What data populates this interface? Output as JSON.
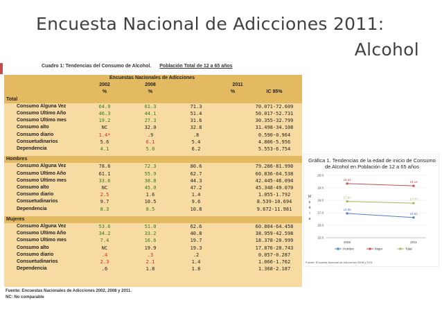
{
  "slide": {
    "title_line1": "Encuesta Nacional de Adicciones 2011:",
    "title_line2": "Alcohol"
  },
  "cuadro": {
    "title": "Cuadro 1: Tendencias del Consumo de Alcohol.",
    "poblacion": "Población Total de 12 a 65 años"
  },
  "table": {
    "group_header": "Encuestas Nacionales de Adicciones",
    "years": [
      "2002",
      "2008",
      "2011"
    ],
    "units": [
      "%",
      "%",
      "%",
      "IC 95%"
    ],
    "sections": [
      {
        "name": "Total",
        "rows": [
          {
            "label": "Consumo Alguna Vez",
            "v2002": "64.9",
            "v2008": "61.3",
            "v2011": "71.3",
            "ic": "70.071-72.609",
            "c2002": "green",
            "c2008": "green"
          },
          {
            "label": "Consumo Último Año",
            "v2002": "46.3",
            "v2008": "44.1",
            "v2011": "51.4",
            "ic": "50.017-52.731",
            "c2002": "green",
            "c2008": "green"
          },
          {
            "label": "Consumo Último mes",
            "v2002": "19.2",
            "v2008": "27.3",
            "v2011": "31.6",
            "ic": "30.355-32.799",
            "c2002": "green",
            "c2008": "green"
          },
          {
            "label": "Consumo alto",
            "v2002": "NC",
            "v2008": "32.0",
            "v2011": "32.8",
            "ic": "31.498-34.108",
            "c2002": "",
            "c2008": ""
          },
          {
            "label": "Consumo diario",
            "v2002": "1.4*",
            "v2008": ".9",
            "v2011": ".8",
            "ic": "0.590-0.964",
            "c2002": "red",
            "c2008": ""
          },
          {
            "label": "Consuetudinarios",
            "v2002": "5.6",
            "v2008": "6.1",
            "v2011": "5.4",
            "ic": "4.806-5.956",
            "c2002": "",
            "c2008": "red"
          },
          {
            "label": "Dependencia",
            "v2002": "4.1",
            "v2008": "5.0",
            "v2011": "6.2",
            "ic": "5.553-6.754",
            "c2002": "green",
            "c2008": "green"
          }
        ]
      },
      {
        "name": "Hombres",
        "rows": [
          {
            "label": "Consumo Alguna Vez",
            "v2002": "78.6",
            "v2008": "72.3",
            "v2011": "80.6",
            "ic": "79.286-81.990",
            "c2002": "",
            "c2008": "green"
          },
          {
            "label": "Consumo Último Año",
            "v2002": "61.1",
            "v2008": "55.9",
            "v2011": "62.7",
            "ic": "60.836-64.538",
            "c2002": "",
            "c2008": "green"
          },
          {
            "label": "Consumo Último mes",
            "v2002": "33.6",
            "v2008": "38.8",
            "v2011": "44.3",
            "ic": "42.445-46.094",
            "c2002": "green",
            "c2008": "green"
          },
          {
            "label": "Consumo alto",
            "v2002": "NC",
            "v2008": "45.0",
            "v2011": "47.2",
            "ic": "45.348-49.070",
            "c2002": "",
            "c2008": "green"
          },
          {
            "label": "Consumo diario",
            "v2002": "2.5",
            "v2008": "1.6",
            "v2011": "1.4",
            "ic": "1.055-1.792",
            "c2002": "red",
            "c2008": ""
          },
          {
            "label": "Consuetudinarios",
            "v2002": "9.7",
            "v2008": "10.5",
            "v2011": "9.6",
            "ic": "8.539-10.694",
            "c2002": "",
            "c2008": ""
          },
          {
            "label": "Dependencia",
            "v2002": "8.3",
            "v2008": "8.5",
            "v2011": "10.8",
            "ic": "9.672-11.981",
            "c2002": "green",
            "c2008": "green"
          }
        ]
      },
      {
        "name": "Mujeres",
        "rows": [
          {
            "label": "Consumo Alguna Vez",
            "v2002": "53.6",
            "v2008": "51.0",
            "v2011": "62.6",
            "ic": "60.804-64.458",
            "c2002": "green",
            "c2008": "green"
          },
          {
            "label": "Consumo Último Año",
            "v2002": "34.2",
            "v2008": "33.2",
            "v2011": "40.8",
            "ic": "38.959-42.598",
            "c2002": "green",
            "c2008": "green"
          },
          {
            "label": "Consumo Último mes",
            "v2002": "7.4",
            "v2008": "16.6",
            "v2011": "19.7",
            "ic": "18.378-20.999",
            "c2002": "green",
            "c2008": "green"
          },
          {
            "label": "Consumo alto",
            "v2002": "NC",
            "v2008": "19.9",
            "v2011": "19.3",
            "ic": "17.876-20.743",
            "c2002": "",
            "c2008": ""
          },
          {
            "label": "Consumo diario",
            "v2002": ".4",
            "v2008": ".3",
            "v2011": ".2",
            "ic": "0.057-0.287",
            "c2002": "red",
            "c2008": "red"
          },
          {
            "label": "Consuetudinarios",
            "v2002": "2.3",
            "v2008": "2.1",
            "v2011": "1.4",
            "ic": "1.066-1.762",
            "c2002": "red",
            "c2008": "red"
          },
          {
            "label": "Dependencia",
            "v2002": ".6",
            "v2008": "1.8",
            "v2011": "1.8",
            "ic": "1.368-2.187",
            "c2002": "",
            "c2008": ""
          }
        ]
      }
    ],
    "fuente": "Fuente: Encuestas Nacionales de Adicciones   2002, 2008 y 2011.",
    "nc_note": "NC: No comparable"
  },
  "chart_data": {
    "type": "line",
    "title": "Gráfica 1. Tendencias de la edad de inicio de Consumo de Alcohol en Población de 12 a 65 años",
    "ylabel": "Media",
    "x": [
      "2008",
      "2011"
    ],
    "ylim": [
      15.0,
      20.0
    ],
    "yticks": [
      "15.0",
      "16.0",
      "17.0",
      "18.0",
      "19.0",
      "20.0"
    ],
    "series": [
      {
        "name": "Hombre",
        "values": [
          16.95,
          16.62
        ],
        "labels": [
          "16.95",
          "16.62"
        ],
        "color": "#4f81bd"
      },
      {
        "name": "Mujer",
        "values": [
          19.34,
          19.16
        ],
        "labels": [
          "19.34",
          "19.16"
        ],
        "color": "#c0504d"
      },
      {
        "name": "Total",
        "values": [
          17.91,
          17.77
        ],
        "labels": [
          "17.91",
          "17.77"
        ],
        "color": "#9bbb59"
      }
    ],
    "source": "Fuente: Encuesta Nacional de Adicciones 2008 y 2011"
  }
}
